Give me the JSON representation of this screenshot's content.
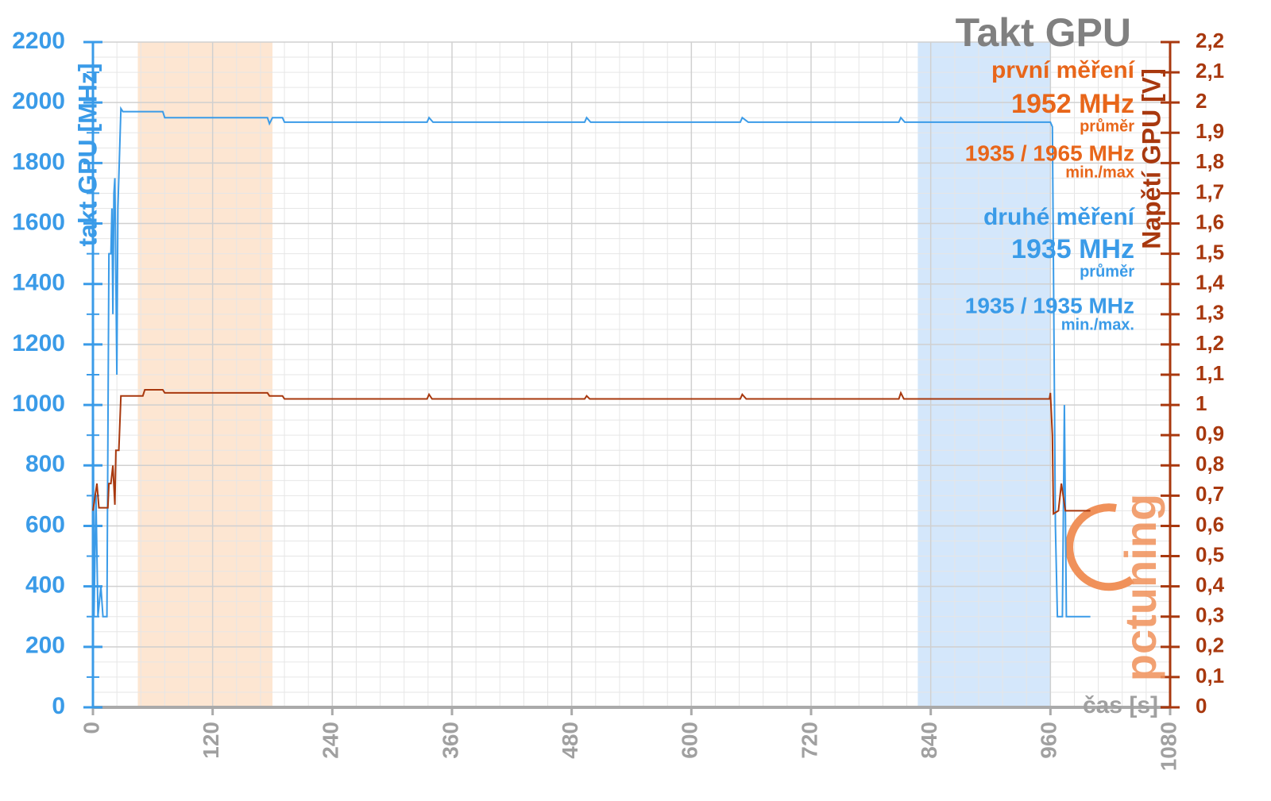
{
  "chart_data": {
    "type": "line",
    "title": "Takt GPU",
    "ylabel": "takt GPU [MHz]",
    "y2label": "Napětí GPU [V]",
    "xlabel": "čas [s]",
    "logo": "pctuning",
    "annotations": [
      {
        "text": "první měření",
        "color": "#e8661a"
      },
      {
        "text": "1952 MHz",
        "color": "#e8661a"
      },
      {
        "text": "průměr",
        "color": "#e8661a"
      },
      {
        "text": "1935 / 1965 MHz",
        "color": "#e8661a"
      },
      {
        "text": "min./max",
        "color": "#e8661a"
      },
      {
        "text": "druhé měření",
        "color": "#3a9be8"
      },
      {
        "text": "1935 MHz",
        "color": "#3a9be8"
      },
      {
        "text": "průměr",
        "color": "#3a9be8"
      },
      {
        "text": "1935 / 1935 MHz",
        "color": "#3a9be8"
      },
      {
        "text": "min./max.",
        "color": "#3a9be8"
      }
    ],
    "bands": [
      {
        "x": [
          45,
          180
        ],
        "color": "#fde6d2"
      },
      {
        "x": [
          827,
          960
        ],
        "color": "#d4e7fb"
      }
    ],
    "xlim": [
      0,
      1080
    ],
    "xticks": [
      0,
      120,
      240,
      360,
      480,
      600,
      720,
      840,
      960,
      1080
    ],
    "xminor": [
      24,
      48,
      72,
      96,
      144,
      168,
      192,
      216,
      264,
      288,
      312,
      336,
      384,
      408,
      432,
      456,
      504,
      528,
      552,
      576,
      624,
      648,
      672,
      696,
      744,
      768,
      792,
      816,
      864,
      888,
      912,
      936,
      984,
      1008,
      1032,
      1056
    ],
    "ylim": [
      0,
      2200
    ],
    "yticks": [
      0,
      200,
      400,
      600,
      800,
      1000,
      1200,
      1400,
      1600,
      1800,
      2000,
      2200
    ],
    "yminor": [
      50,
      100,
      150,
      250,
      300,
      350,
      450,
      500,
      550,
      650,
      700,
      750,
      850,
      900,
      950,
      1050,
      1100,
      1150,
      1250,
      1300,
      1350,
      1450,
      1500,
      1550,
      1650,
      1700,
      1750,
      1850,
      1900,
      1950,
      2050,
      2100,
      2150
    ],
    "y2lim": [
      0,
      2.2
    ],
    "y2ticks": [
      0,
      {
        "value": 0.1,
        "label": "0,1"
      },
      {
        "value": 0.2,
        "label": "0,2"
      },
      {
        "value": 0.3,
        "label": "0,3"
      },
      {
        "value": 0.4,
        "label": "0,4"
      },
      {
        "value": 0.5,
        "label": "0,5"
      },
      {
        "value": 0.6,
        "label": "0,6"
      },
      {
        "value": 0.7,
        "label": "0,7"
      },
      {
        "value": 0.8,
        "label": "0,8"
      },
      {
        "value": 0.9,
        "label": "0,9"
      },
      1,
      {
        "value": 1.1,
        "label": "1,1"
      },
      {
        "value": 1.2,
        "label": "1,2"
      },
      {
        "value": 1.3,
        "label": "1,3"
      },
      {
        "value": 1.4,
        "label": "1,4"
      },
      {
        "value": 1.5,
        "label": "1,5"
      },
      {
        "value": 1.6,
        "label": "1,6"
      },
      {
        "value": 1.7,
        "label": "1,7"
      },
      {
        "value": 1.8,
        "label": "1,8"
      },
      {
        "value": 1.9,
        "label": "1,9"
      },
      2,
      {
        "value": 2.1,
        "label": "2,1"
      },
      {
        "value": 2.2,
        "label": "2,2"
      }
    ],
    "grid": true,
    "series": [
      {
        "color": "#3a9be8",
        "x": [
          0,
          1,
          3,
          5,
          8,
          10,
          14,
          16,
          18,
          19,
          20,
          21,
          22,
          24,
          25,
          28,
          30,
          70,
          72,
          175,
          177,
          180,
          190,
          192,
          335,
          337,
          341,
          493,
          495,
          499,
          649,
          651,
          657,
          808,
          810,
          814,
          960,
          962,
          965,
          967,
          972,
          974,
          976,
          1000
        ],
        "values": [
          1400,
          300,
          700,
          300,
          400,
          300,
          300,
          1500,
          1500,
          1650,
          1300,
          1700,
          1750,
          1100,
          1650,
          1980,
          1970,
          1970,
          1950,
          1950,
          1930,
          1950,
          1950,
          1935,
          1935,
          1950,
          1935,
          1935,
          1950,
          1935,
          1935,
          1950,
          1935,
          1935,
          1950,
          1935,
          1935,
          1920,
          600,
          300,
          300,
          1000,
          300,
          300
        ]
      },
      {
        "color": "#a8380e",
        "axis": "y2",
        "x": [
          0,
          4,
          6,
          15,
          16,
          18,
          20,
          22,
          23,
          26,
          28,
          50,
          52,
          70,
          72,
          175,
          177,
          190,
          192,
          335,
          337,
          340,
          493,
          495,
          498,
          649,
          651,
          655,
          808,
          810,
          813,
          959,
          960,
          962,
          963,
          968,
          971,
          975,
          1000
        ],
        "values": [
          0.65,
          0.74,
          0.66,
          0.66,
          0.74,
          0.74,
          0.8,
          0.67,
          0.85,
          0.85,
          1.03,
          1.03,
          1.05,
          1.05,
          1.04,
          1.04,
          1.03,
          1.03,
          1.02,
          1.02,
          1.035,
          1.02,
          1.02,
          1.03,
          1.02,
          1.02,
          1.035,
          1.02,
          1.02,
          1.04,
          1.02,
          1.02,
          1.04,
          0.9,
          0.64,
          0.65,
          0.74,
          0.65,
          0.65
        ]
      }
    ]
  }
}
